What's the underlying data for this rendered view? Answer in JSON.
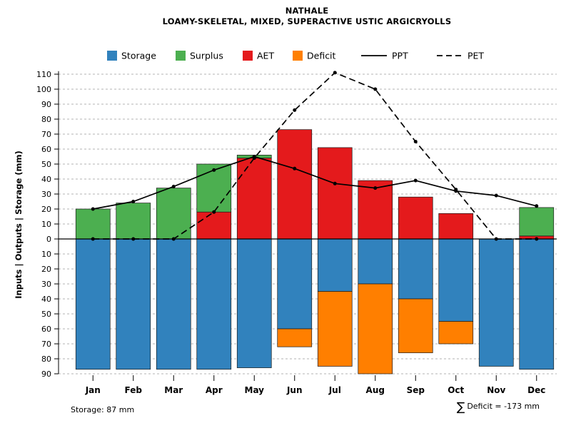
{
  "title": "NATHALE",
  "subtitle": "LOAMY-SKELETAL, MIXED, SUPERACTIVE USTIC ARGICRYOLLS",
  "footer": {
    "storage_note": "Storage: 87 mm",
    "sigma": "∑",
    "deficit_note": "Deficit = -173 mm"
  },
  "chart_data": {
    "type": "bar",
    "title": "NATHALE",
    "subtitle": "LOAMY-SKELETAL, MIXED, SUPERACTIVE USTIC ARGICRYOLLS",
    "ylabel": "Inputs | Outputs | Storage   (mm)",
    "categories": [
      "Jan",
      "Feb",
      "Mar",
      "Apr",
      "May",
      "Jun",
      "Jul",
      "Aug",
      "Sep",
      "Oct",
      "Nov",
      "Dec"
    ],
    "y_ticks_up": [
      0,
      10,
      20,
      30,
      40,
      50,
      60,
      70,
      80,
      90,
      100,
      110
    ],
    "y_ticks_down": [
      10,
      20,
      30,
      40,
      50,
      60,
      70,
      80,
      90
    ],
    "ylim": [
      -92,
      115
    ],
    "grid": "dashed-horizontal",
    "legend_position": "top",
    "colors": {
      "storage": "#3182bd",
      "surplus": "#4caf50",
      "aet": "#e41a1c",
      "deficit": "#ff7f00",
      "line": "#000000",
      "grid": "#b3b3b3"
    },
    "series": [
      {
        "name": "Storage",
        "kind": "bar-down",
        "color_key": "storage",
        "values": [
          87,
          87,
          87,
          87,
          86,
          60,
          35,
          30,
          40,
          55,
          85,
          87
        ]
      },
      {
        "name": "Surplus",
        "kind": "bar-up-stacked-on-AET",
        "color_key": "surplus",
        "values": [
          20,
          24,
          34,
          32,
          2,
          0,
          0,
          0,
          0,
          0,
          0,
          19
        ]
      },
      {
        "name": "AET",
        "kind": "bar-up",
        "color_key": "aet",
        "values": [
          0,
          0,
          0,
          18,
          54,
          73,
          61,
          39,
          28,
          17,
          0,
          2
        ]
      },
      {
        "name": "Deficit",
        "kind": "bar-down-stacked-on-Storage",
        "color_key": "deficit",
        "values": [
          0,
          0,
          0,
          0,
          0,
          12,
          50,
          60,
          36,
          15,
          0,
          0
        ]
      },
      {
        "name": "PPT",
        "kind": "line-solid",
        "values": [
          20,
          25,
          35,
          46,
          55,
          47,
          37,
          34,
          39,
          32,
          29,
          22
        ]
      },
      {
        "name": "PET",
        "kind": "line-dashed",
        "values": [
          0,
          0,
          0,
          18,
          54,
          86,
          111,
          100,
          65,
          33,
          0,
          0
        ]
      }
    ],
    "legend": [
      {
        "label": "Storage",
        "swatch": "square",
        "color_key": "storage"
      },
      {
        "label": "Surplus",
        "swatch": "square",
        "color_key": "surplus"
      },
      {
        "label": "AET",
        "swatch": "square",
        "color_key": "aet"
      },
      {
        "label": "Deficit",
        "swatch": "square",
        "color_key": "deficit"
      },
      {
        "label": "PPT",
        "swatch": "line-solid",
        "color_key": "line"
      },
      {
        "label": "PET",
        "swatch": "line-dashed",
        "color_key": "line"
      }
    ]
  }
}
